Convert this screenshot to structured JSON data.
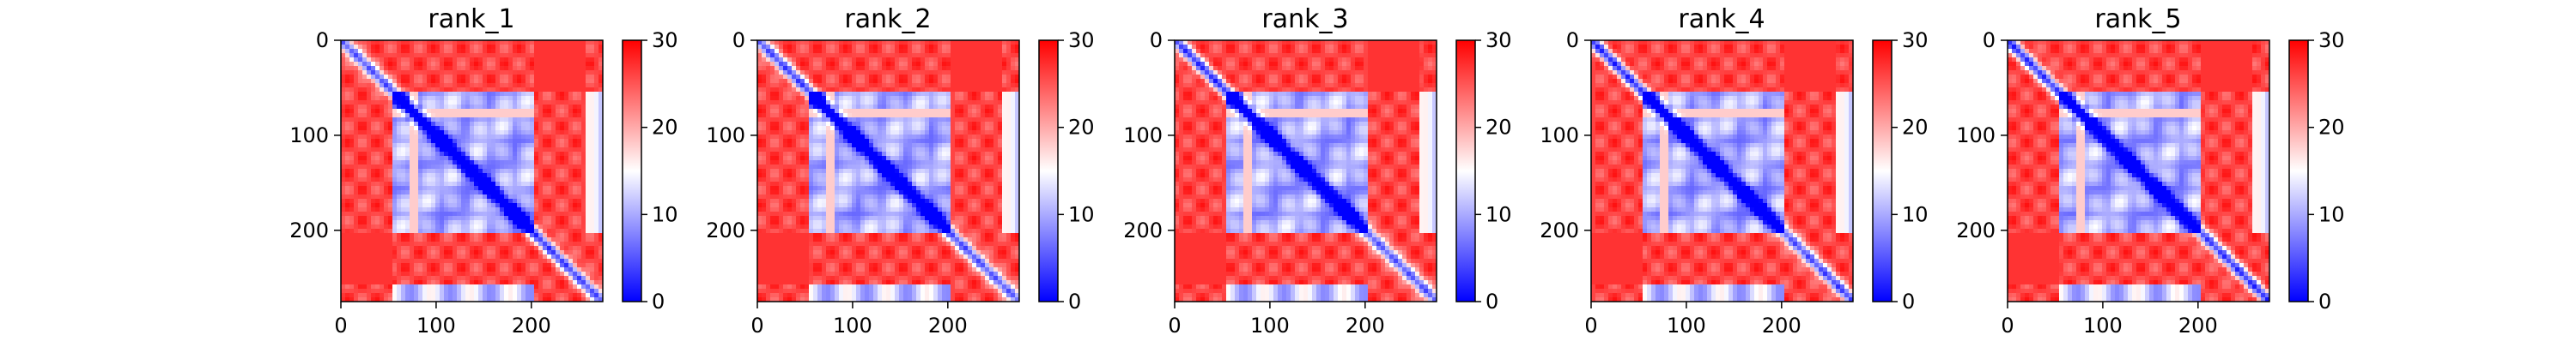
{
  "figure": {
    "panels": [
      {
        "title": "rank_1"
      },
      {
        "title": "rank_2"
      },
      {
        "title": "rank_3"
      },
      {
        "title": "rank_4"
      },
      {
        "title": "rank_5"
      }
    ]
  },
  "chart_data": [
    {
      "type": "heatmap",
      "title": "rank_1",
      "xlabel": "",
      "ylabel": "",
      "xlim": [
        0,
        275
      ],
      "ylim": [
        275,
        0
      ],
      "x_ticks": [
        "0",
        "100",
        "200"
      ],
      "y_ticks": [
        "0",
        "100",
        "200"
      ],
      "colorbar": {
        "range": [
          0,
          30
        ],
        "ticks": [
          "0",
          "10",
          "20",
          "30"
        ],
        "colormap": "bwr"
      },
      "colors": {
        "low": "#0000ff",
        "mid": "#ffffff",
        "high": "#ff0000"
      },
      "grid": false
    },
    {
      "type": "heatmap",
      "title": "rank_2",
      "xlabel": "",
      "ylabel": "",
      "xlim": [
        0,
        275
      ],
      "ylim": [
        275,
        0
      ],
      "x_ticks": [
        "0",
        "100",
        "200"
      ],
      "y_ticks": [
        "0",
        "100",
        "200"
      ],
      "colorbar": {
        "range": [
          0,
          30
        ],
        "ticks": [
          "0",
          "10",
          "20",
          "30"
        ],
        "colormap": "bwr"
      },
      "colors": {
        "low": "#0000ff",
        "mid": "#ffffff",
        "high": "#ff0000"
      },
      "grid": false
    },
    {
      "type": "heatmap",
      "title": "rank_3",
      "xlabel": "",
      "ylabel": "",
      "xlim": [
        0,
        275
      ],
      "ylim": [
        275,
        0
      ],
      "x_ticks": [
        "0",
        "100",
        "200"
      ],
      "y_ticks": [
        "0",
        "100",
        "200"
      ],
      "colorbar": {
        "range": [
          0,
          30
        ],
        "ticks": [
          "0",
          "10",
          "20",
          "30"
        ],
        "colormap": "bwr"
      },
      "colors": {
        "low": "#0000ff",
        "mid": "#ffffff",
        "high": "#ff0000"
      },
      "grid": false
    },
    {
      "type": "heatmap",
      "title": "rank_4",
      "xlabel": "",
      "ylabel": "",
      "xlim": [
        0,
        275
      ],
      "ylim": [
        275,
        0
      ],
      "x_ticks": [
        "0",
        "100",
        "200"
      ],
      "y_ticks": [
        "0",
        "100",
        "200"
      ],
      "colorbar": {
        "range": [
          0,
          30
        ],
        "ticks": [
          "0",
          "10",
          "20",
          "30"
        ],
        "colormap": "bwr"
      },
      "colors": {
        "low": "#0000ff",
        "mid": "#ffffff",
        "high": "#ff0000"
      },
      "grid": false
    },
    {
      "type": "heatmap",
      "title": "rank_5",
      "xlabel": "",
      "ylabel": "",
      "xlim": [
        0,
        275
      ],
      "ylim": [
        275,
        0
      ],
      "x_ticks": [
        "0",
        "100",
        "200"
      ],
      "y_ticks": [
        "0",
        "100",
        "200"
      ],
      "colorbar": {
        "range": [
          0,
          30
        ],
        "ticks": [
          "0",
          "10",
          "20",
          "30"
        ],
        "colormap": "bwr"
      },
      "colors": {
        "low": "#0000ff",
        "mid": "#ffffff",
        "high": "#ff0000"
      },
      "grid": false
    }
  ]
}
